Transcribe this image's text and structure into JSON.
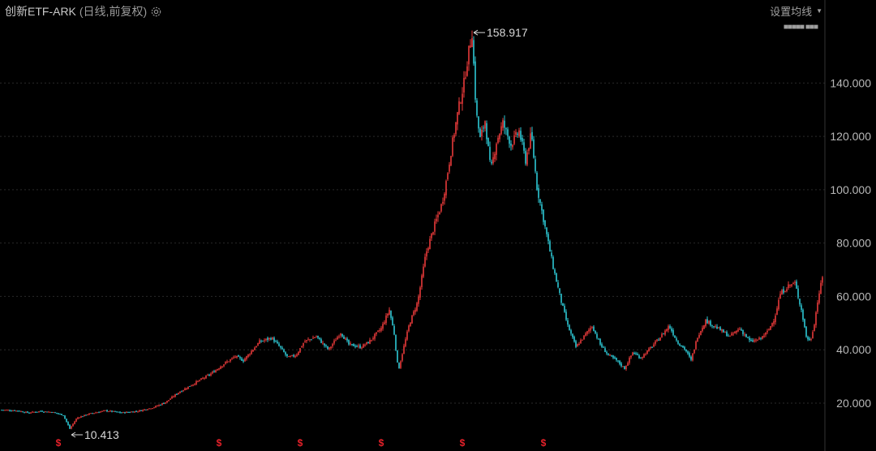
{
  "header": {
    "title": "创新ETF-ARK",
    "subtitle": "(日线,前复权)",
    "settings_icon": "gear-icon"
  },
  "ma_setting": {
    "label": "设置均线",
    "caret_icon": "caret-down-icon",
    "legend_text": "■■■■■ ■■■"
  },
  "colors": {
    "background": "#000000",
    "up": "#e83a3a",
    "down": "#2ec8d4",
    "grid": "#2a2a2a",
    "dividend_marker": "#e8212a"
  },
  "chart_data": {
    "type": "candlestick",
    "title": "",
    "ylim": [
      13,
      162
    ],
    "yticks": [
      20,
      40,
      60,
      80,
      100,
      120,
      140
    ],
    "ytick_labels": [
      "20.000",
      "40.000",
      "60.000",
      "80.000",
      "100.000",
      "120.000",
      "140.000"
    ],
    "grid": "horizontal-dotted",
    "price_path": [
      [
        0,
        17.5
      ],
      [
        20,
        17.2
      ],
      [
        35,
        16.4
      ],
      [
        50,
        17
      ],
      [
        65,
        16.6
      ],
      [
        78,
        15.5
      ],
      [
        86,
        10.413
      ],
      [
        95,
        14.5
      ],
      [
        110,
        16
      ],
      [
        130,
        17.2
      ],
      [
        150,
        16.4
      ],
      [
        170,
        17
      ],
      [
        190,
        18.5
      ],
      [
        205,
        20.5
      ],
      [
        220,
        24
      ],
      [
        240,
        27.5
      ],
      [
        260,
        31
      ],
      [
        275,
        34.5
      ],
      [
        290,
        37.5
      ],
      [
        300,
        36
      ],
      [
        320,
        43
      ],
      [
        335,
        44.5
      ],
      [
        345,
        41
      ],
      [
        355,
        37
      ],
      [
        365,
        38
      ],
      [
        375,
        43
      ],
      [
        390,
        45
      ],
      [
        405,
        40
      ],
      [
        420,
        46.5
      ],
      [
        430,
        42
      ],
      [
        445,
        41
      ],
      [
        455,
        43
      ],
      [
        470,
        48
      ],
      [
        480,
        55
      ],
      [
        486,
        46
      ],
      [
        491,
        32
      ],
      [
        497,
        40
      ],
      [
        505,
        50
      ],
      [
        515,
        58
      ],
      [
        525,
        76
      ],
      [
        535,
        86
      ],
      [
        545,
        95
      ],
      [
        550,
        103
      ],
      [
        558,
        118
      ],
      [
        565,
        130
      ],
      [
        572,
        140
      ],
      [
        578,
        152
      ],
      [
        582,
        158.917
      ],
      [
        587,
        129
      ],
      [
        592,
        119
      ],
      [
        598,
        126
      ],
      [
        605,
        107
      ],
      [
        612,
        118
      ],
      [
        620,
        125
      ],
      [
        630,
        117
      ],
      [
        640,
        122
      ],
      [
        648,
        111
      ],
      [
        655,
        121
      ],
      [
        662,
        101
      ],
      [
        672,
        86
      ],
      [
        682,
        71
      ],
      [
        692,
        58
      ],
      [
        700,
        49
      ],
      [
        710,
        41
      ],
      [
        720,
        45
      ],
      [
        730,
        49
      ],
      [
        740,
        42
      ],
      [
        750,
        38
      ],
      [
        760,
        36
      ],
      [
        770,
        33
      ],
      [
        780,
        39
      ],
      [
        790,
        37
      ],
      [
        800,
        40
      ],
      [
        812,
        44
      ],
      [
        825,
        49
      ],
      [
        835,
        43
      ],
      [
        845,
        40
      ],
      [
        852,
        36
      ],
      [
        860,
        45
      ],
      [
        870,
        51
      ],
      [
        880,
        49
      ],
      [
        890,
        47
      ],
      [
        900,
        45
      ],
      [
        912,
        48
      ],
      [
        925,
        43
      ],
      [
        937,
        44
      ],
      [
        947,
        47
      ],
      [
        955,
        52
      ],
      [
        962,
        61
      ],
      [
        972,
        64
      ],
      [
        980,
        65
      ],
      [
        988,
        55
      ],
      [
        994,
        45
      ],
      [
        999,
        43
      ],
      [
        1004,
        50
      ],
      [
        1009,
        60
      ],
      [
        1014,
        67
      ]
    ],
    "annotations": [
      {
        "label": "158.917",
        "x": 582,
        "value": 158.917
      },
      {
        "label": "10.413",
        "x": 86,
        "value": 10.413
      }
    ],
    "dividend_markers": {
      "symbol": "$",
      "x": [
        72,
        270,
        370,
        470,
        570,
        670
      ]
    }
  }
}
